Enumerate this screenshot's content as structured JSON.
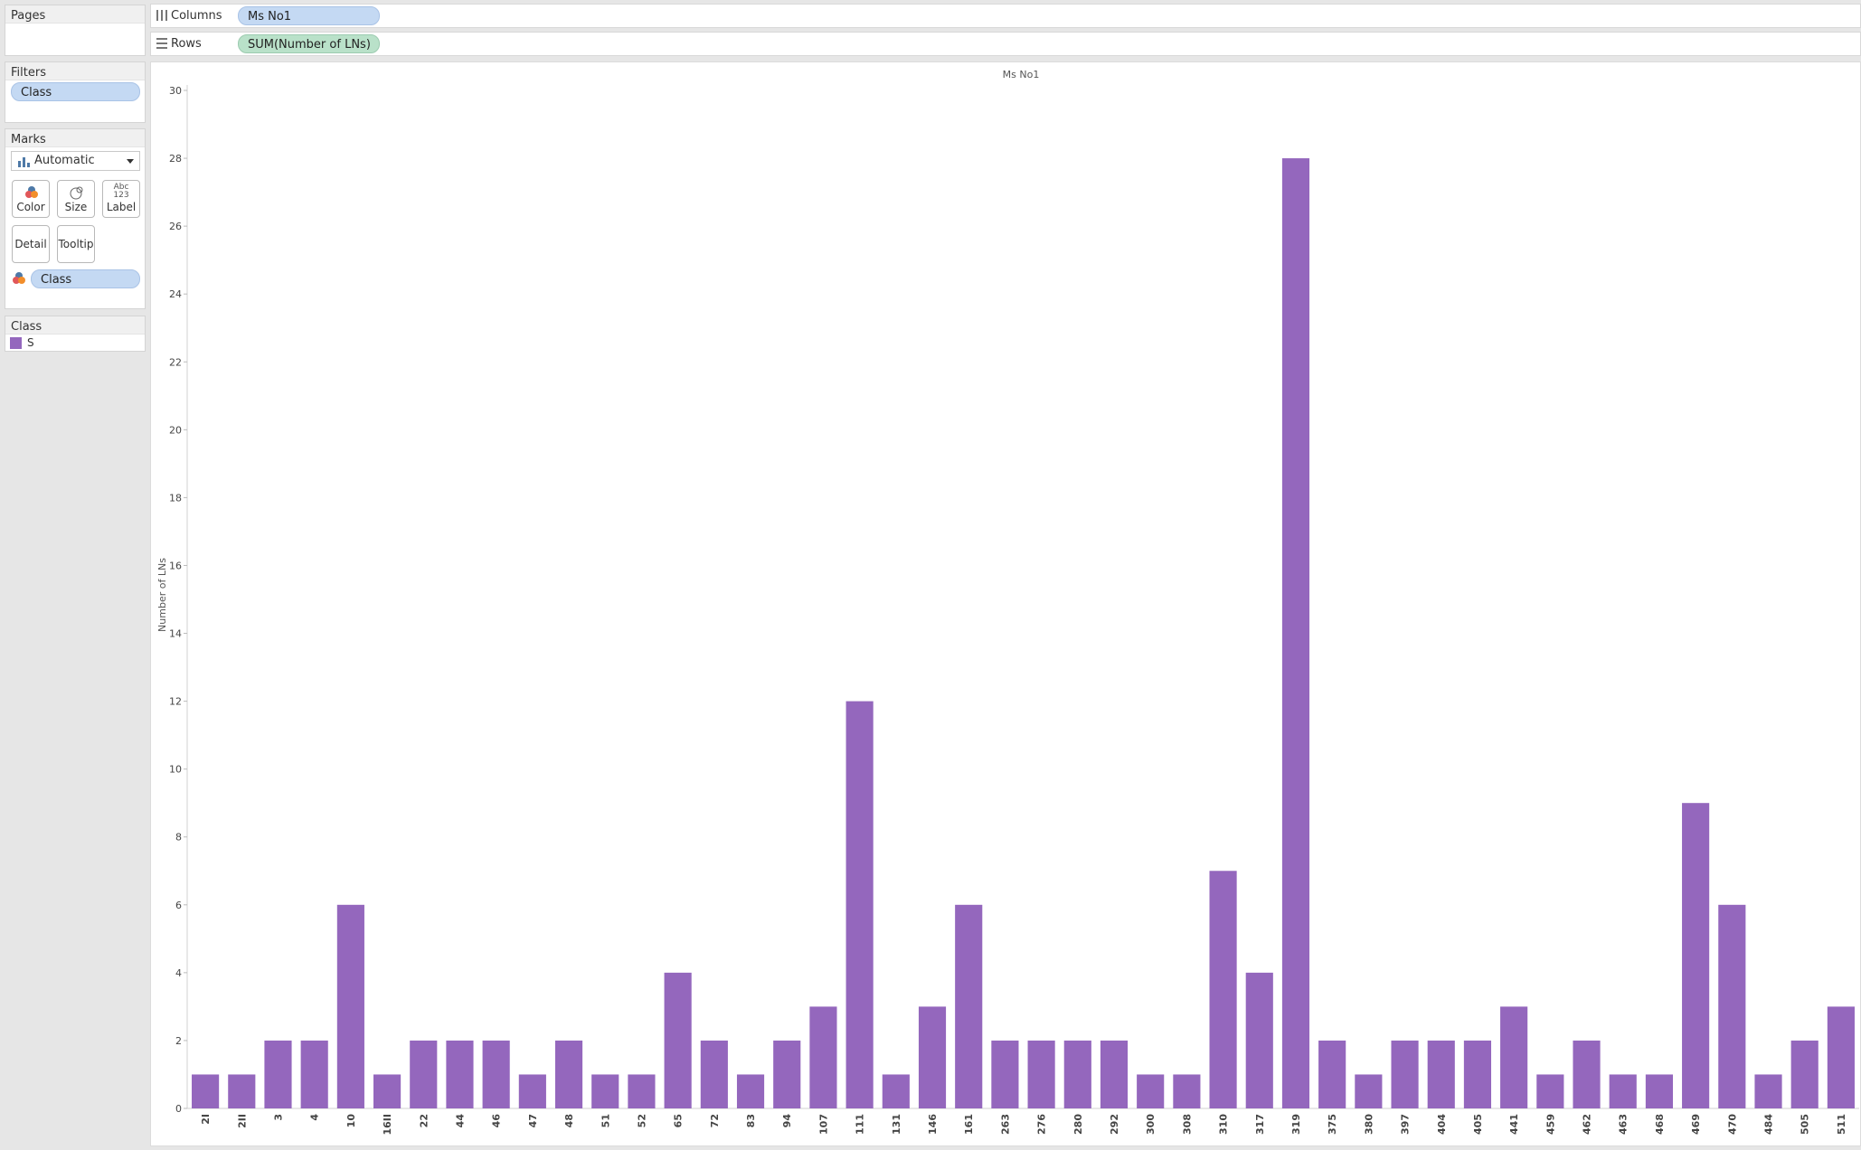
{
  "panels": {
    "pages": {
      "title": "Pages"
    },
    "filters": {
      "title": "Filters",
      "pill": "Class"
    },
    "marks": {
      "title": "Marks",
      "mark_type": "Automatic",
      "buttons": {
        "color": "Color",
        "size": "Size",
        "label": "Label",
        "detail": "Detail",
        "tooltip": "Tooltip"
      },
      "label_icon_text_1": "Abc",
      "label_icon_text_2": "123",
      "color_field": "Class"
    },
    "legend": {
      "title": "Class",
      "item": "S",
      "item_color": "#9467bd"
    }
  },
  "shelves": {
    "columns": {
      "label": "Columns",
      "pill": "Ms No1"
    },
    "rows": {
      "label": "Rows",
      "pill": "SUM(Number of LNs)"
    }
  },
  "chart_data": {
    "type": "bar",
    "title": "Ms No1",
    "xlabel": "",
    "ylabel": "Number of LNs",
    "ylim": [
      0,
      30
    ],
    "yticks": [
      0,
      2,
      4,
      6,
      8,
      10,
      12,
      14,
      16,
      18,
      20,
      22,
      24,
      26,
      28,
      30
    ],
    "bar_color": "#9467bd",
    "categories": [
      "2I",
      "2II",
      "3",
      "4",
      "10",
      "16II",
      "22",
      "44",
      "46",
      "47",
      "48",
      "51",
      "52",
      "65",
      "72",
      "83",
      "94",
      "107",
      "111",
      "131",
      "146",
      "161",
      "263",
      "276",
      "280",
      "292",
      "300",
      "308",
      "310",
      "317",
      "319",
      "375",
      "380",
      "397",
      "404",
      "405",
      "441",
      "459",
      "462",
      "463",
      "468",
      "469",
      "470",
      "484",
      "505",
      "511"
    ],
    "values": [
      1,
      1,
      2,
      2,
      6,
      1,
      2,
      2,
      2,
      1,
      2,
      1,
      1,
      4,
      2,
      1,
      2,
      3,
      12,
      1,
      3,
      6,
      2,
      2,
      2,
      2,
      1,
      1,
      7,
      4,
      28,
      2,
      1,
      2,
      2,
      2,
      3,
      1,
      2,
      1,
      1,
      9,
      6,
      1,
      2,
      3
    ],
    "grid": false,
    "legend": "left-panel"
  }
}
